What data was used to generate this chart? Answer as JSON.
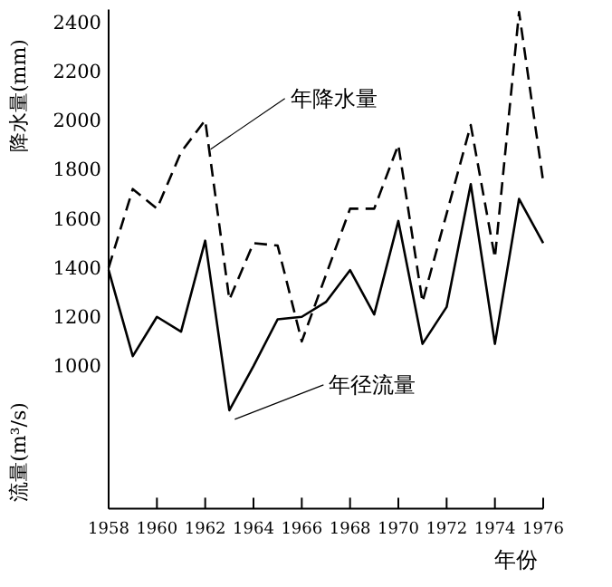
{
  "chart_data": {
    "type": "line",
    "xlabel": "年份",
    "ylabel": "降水量(mm)",
    "annotations": [
      "流量(m³/s)"
    ],
    "x": [
      1958,
      1959,
      1960,
      1961,
      1962,
      1963,
      1964,
      1965,
      1966,
      1967,
      1968,
      1969,
      1970,
      1971,
      1972,
      1973,
      1974,
      1975,
      1976
    ],
    "xlim": [
      1958,
      1976
    ],
    "xticks": [
      1958,
      1960,
      1962,
      1964,
      1966,
      1968,
      1970,
      1972,
      1974,
      1976
    ],
    "ylim": [
      420,
      2450
    ],
    "yticks": [
      1000,
      1200,
      1400,
      1600,
      1800,
      2000,
      2200,
      2400
    ],
    "grid": false,
    "series": [
      {
        "name": "年降水量",
        "color": "#000000",
        "line_style": "dashed",
        "values": [
          1400,
          1720,
          1640,
          1870,
          2000,
          1270,
          1500,
          1490,
          1100,
          1370,
          1640,
          1640,
          1900,
          1260,
          1620,
          1980,
          1440,
          2440,
          1750
        ]
      },
      {
        "name": "年径流量",
        "color": "#000000",
        "line_style": "solid",
        "values": [
          1390,
          1040,
          1200,
          1140,
          1510,
          820,
          1000,
          1190,
          1200,
          1260,
          1390,
          1210,
          1590,
          1090,
          1240,
          1740,
          1090,
          1680,
          1500
        ]
      }
    ]
  }
}
